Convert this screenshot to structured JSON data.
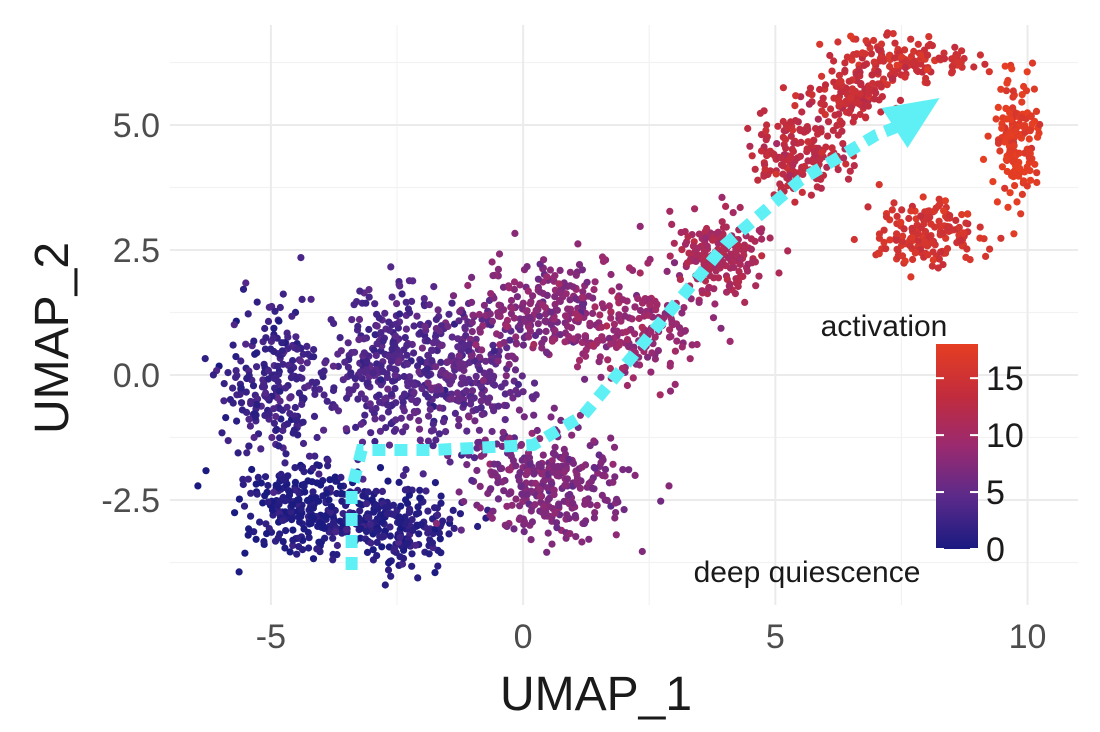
{
  "chart_data": {
    "type": "scatter",
    "title": "",
    "xlabel": "UMAP_1",
    "ylabel": "UMAP_2",
    "xlim": [
      -7,
      11
    ],
    "ylim": [
      -4.6,
      7.0
    ],
    "x_ticks": [
      -5,
      0,
      5,
      10
    ],
    "y_ticks": [
      -2.5,
      0.0,
      2.5,
      5.0
    ],
    "x_tick_labels": [
      "-5",
      "0",
      "5",
      "10"
    ],
    "y_tick_labels": [
      "-2.5",
      "0.0",
      "2.5",
      "5.0"
    ],
    "grid": true,
    "color_variable": "activation",
    "color_scale": {
      "colors": [
        "#1a1a80",
        "#5a2a8a",
        "#9a2a70",
        "#c22c3c",
        "#e53e22"
      ],
      "range": [
        0,
        18
      ],
      "ticks": [
        0,
        5,
        10,
        15
      ],
      "tick_labels": [
        "0",
        "5",
        "10",
        "15"
      ]
    },
    "legend": {
      "title": "activation",
      "position": "right",
      "note": "deep quiescence"
    },
    "clusters": [
      {
        "cx": -4.3,
        "cy": -2.7,
        "sx": 0.9,
        "sy": 0.55,
        "n": 260,
        "activation": 0.5
      },
      {
        "cx": -2.6,
        "cy": -3.0,
        "sx": 0.8,
        "sy": 0.55,
        "n": 240,
        "activation": 1.0
      },
      {
        "cx": -4.8,
        "cy": -0.2,
        "sx": 0.7,
        "sy": 1.1,
        "n": 240,
        "activation": 2.5
      },
      {
        "cx": -2.6,
        "cy": 0.3,
        "sx": 0.9,
        "sy": 1.0,
        "n": 320,
        "activation": 3.5
      },
      {
        "cx": -1.0,
        "cy": -0.1,
        "sx": 0.8,
        "sy": 1.0,
        "n": 280,
        "activation": 5.0
      },
      {
        "cx": 0.6,
        "cy": -2.2,
        "sx": 1.0,
        "sy": 0.7,
        "n": 300,
        "activation": 7.0
      },
      {
        "cx": 0.4,
        "cy": 1.3,
        "sx": 0.9,
        "sy": 0.7,
        "n": 220,
        "activation": 7.5
      },
      {
        "cx": 2.2,
        "cy": 0.9,
        "sx": 0.9,
        "sy": 0.7,
        "n": 200,
        "activation": 9.0
      },
      {
        "cx": 3.9,
        "cy": 2.4,
        "sx": 0.6,
        "sy": 0.45,
        "n": 190,
        "activation": 11.0
      },
      {
        "cx": 5.5,
        "cy": 4.4,
        "sx": 0.6,
        "sy": 0.55,
        "n": 180,
        "activation": 13.0
      },
      {
        "cx": 7.6,
        "cy": 6.3,
        "sx": 0.9,
        "sy": 0.3,
        "n": 150,
        "activation": 15.0
      },
      {
        "cx": 9.8,
        "cy": 4.7,
        "sx": 0.3,
        "sy": 0.8,
        "n": 160,
        "activation": 17.5
      },
      {
        "cx": 8.0,
        "cy": 2.8,
        "sx": 0.7,
        "sy": 0.45,
        "n": 170,
        "activation": 15.5
      },
      {
        "cx": 6.5,
        "cy": 5.6,
        "sx": 0.5,
        "sy": 0.4,
        "n": 110,
        "activation": 14.0
      }
    ],
    "trajectory": {
      "color": "#5ef0f5",
      "path_x": [
        -3.4,
        -3.4,
        -3.2,
        -1.8,
        0.2,
        1.2,
        2.6,
        4.0,
        5.5,
        7.0,
        7.5
      ],
      "path_y": [
        -3.9,
        -2.3,
        -1.5,
        -1.5,
        -1.4,
        -0.8,
        0.9,
        2.6,
        3.9,
        4.8,
        5.0
      ],
      "arrow_head": {
        "x": 7.7,
        "y": 5.1
      }
    }
  }
}
